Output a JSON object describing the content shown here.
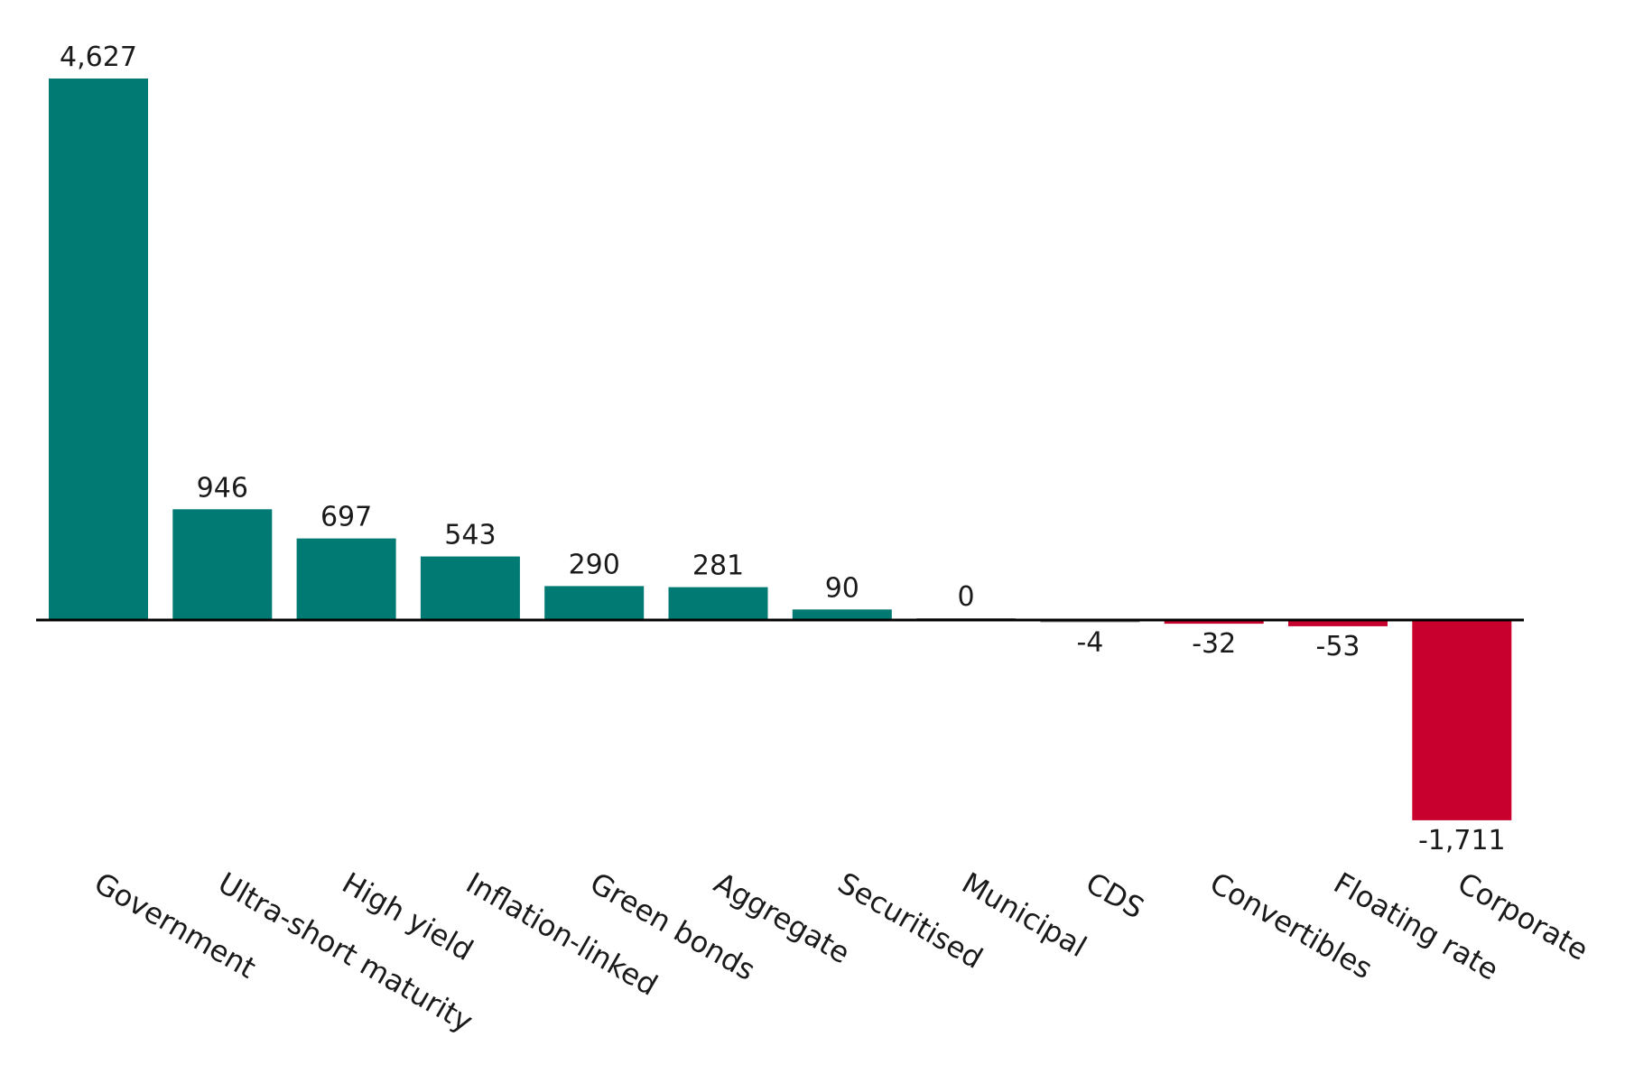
{
  "chart_data": {
    "type": "bar",
    "categories": [
      "Government",
      "Ultra-short maturity",
      "High yield",
      "Inflation-linked",
      "Green bonds",
      "Aggregate",
      "Securitised",
      "Municipal",
      "CDS",
      "Convertibles",
      "Floating rate",
      "Corporate"
    ],
    "values": [
      4627,
      946,
      697,
      543,
      290,
      281,
      90,
      0,
      -4,
      -32,
      -53,
      -1711
    ],
    "value_labels": [
      "4,627",
      "946",
      "697",
      "543",
      "290",
      "281",
      "90",
      "0",
      "-4",
      "-32",
      "-53",
      "-1,711"
    ],
    "title": "",
    "xlabel": "",
    "ylabel": "",
    "ylim": [
      -1711,
      4627
    ],
    "grid": false,
    "legend": "none",
    "colors": {
      "positive": "#007a73",
      "negative": "#c8002d",
      "zero_line": "#8c8c8c",
      "axis": "#000000"
    }
  }
}
